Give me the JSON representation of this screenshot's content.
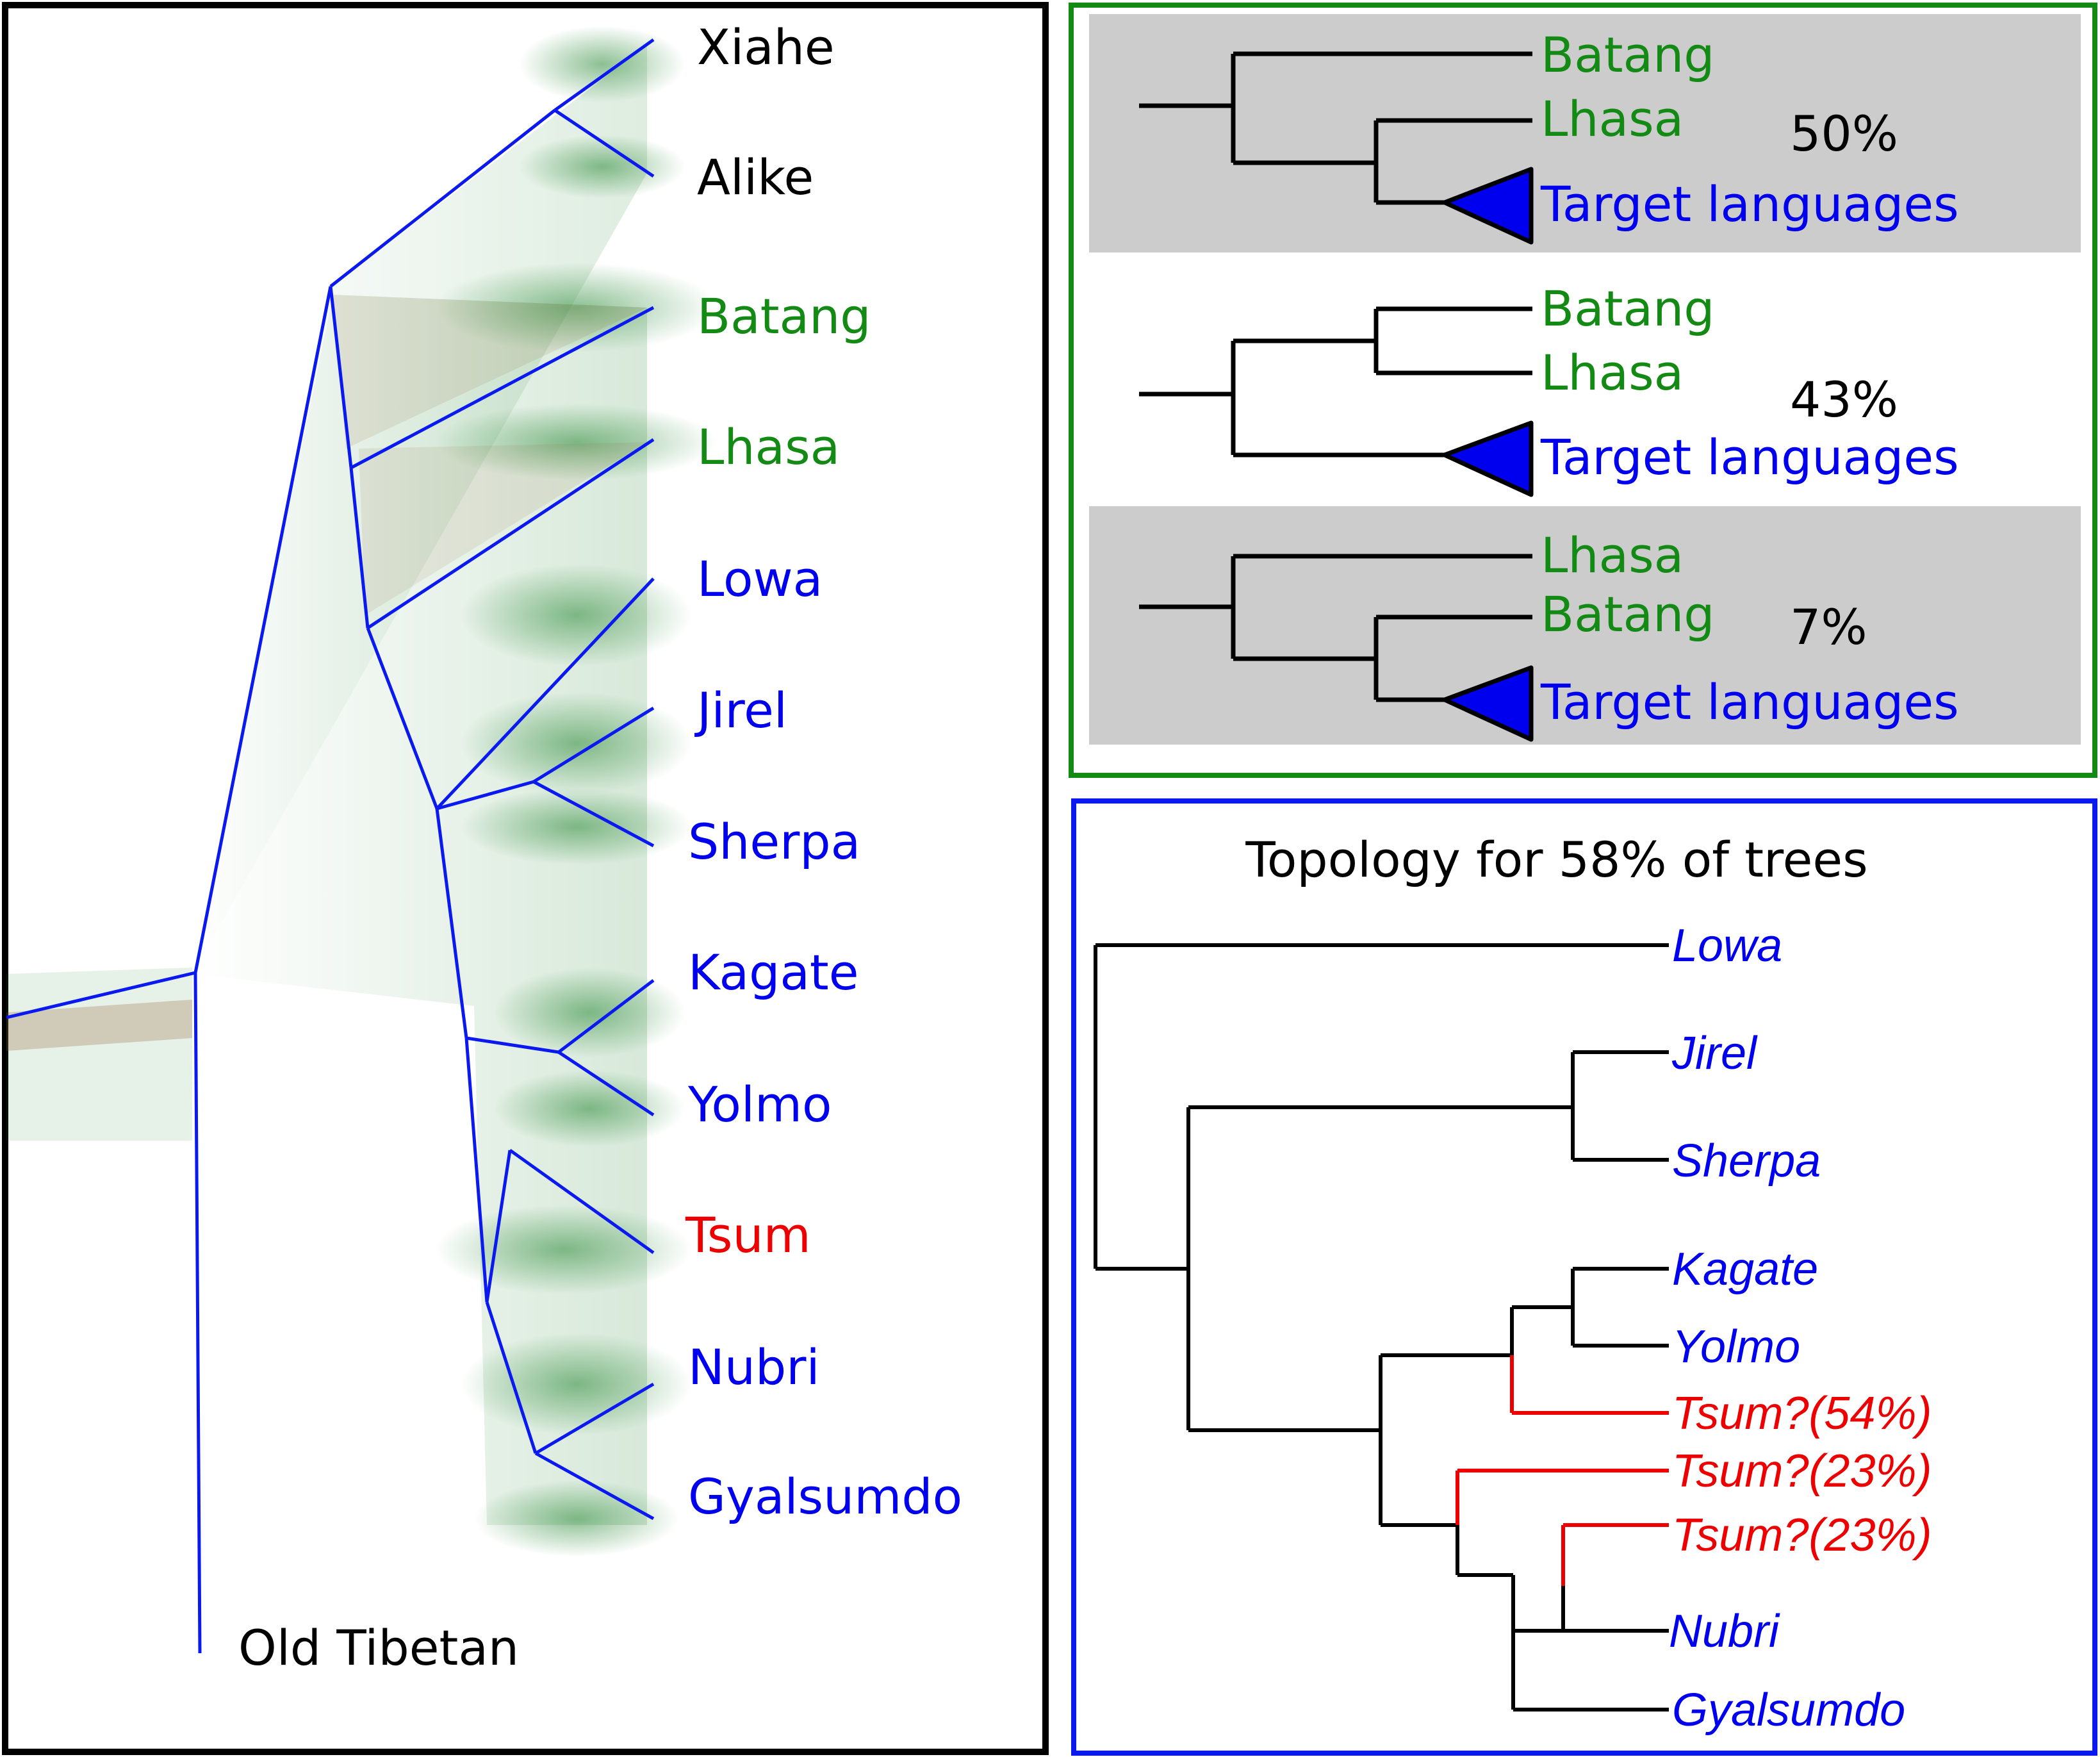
{
  "colors": {
    "black": "#000000",
    "green": "#138a13",
    "blue": "#0000ee",
    "red": "#ee0000",
    "gray_band": "#cccccc",
    "tree_blue": "#0a19f0",
    "cloud_green": "#2e8b3a",
    "cloud_brown": "#8a5a2b",
    "panel_green_border": "#138a13",
    "panel_blue_border": "#0a19f0"
  },
  "left_panel": {
    "root_label": "Old Tibetan",
    "leaves": [
      {
        "label": "Xiahe",
        "color": "black"
      },
      {
        "label": "Alike",
        "color": "black"
      },
      {
        "label": "Batang",
        "color": "green"
      },
      {
        "label": "Lhasa",
        "color": "green"
      },
      {
        "label": "Lowa",
        "color": "blue"
      },
      {
        "label": "Jirel",
        "color": "blue"
      },
      {
        "label": "Sherpa",
        "color": "blue"
      },
      {
        "label": "Kagate",
        "color": "blue"
      },
      {
        "label": "Yolmo",
        "color": "blue"
      },
      {
        "label": "Tsum",
        "color": "red"
      },
      {
        "label": "Nubri",
        "color": "blue"
      },
      {
        "label": "Gyalsumdo",
        "color": "blue"
      }
    ]
  },
  "green_panel": {
    "topologies": [
      {
        "percent": "50%",
        "upper_leaf": "Batang",
        "lower_leaf": "Lhasa",
        "clade": "Target languages",
        "shaded": true
      },
      {
        "percent": "43%",
        "upper_leaf": "Batang",
        "lower_leaf": "Lhasa",
        "clade": "Target languages",
        "shaded": false
      },
      {
        "percent": "7%",
        "upper_leaf": "Lhasa",
        "lower_leaf": "Batang",
        "clade": "Target languages",
        "shaded": true
      }
    ]
  },
  "blue_panel": {
    "title": "Topology for 58% of trees",
    "leaves": [
      {
        "label": "Lowa",
        "color": "blue"
      },
      {
        "label": "Jirel",
        "color": "blue"
      },
      {
        "label": "Sherpa",
        "color": "blue"
      },
      {
        "label": "Kagate",
        "color": "blue"
      },
      {
        "label": "Yolmo",
        "color": "blue"
      },
      {
        "label": "Tsum?(54%)",
        "color": "red"
      },
      {
        "label": "Tsum?(23%)",
        "color": "red"
      },
      {
        "label": "Tsum?(23%)",
        "color": "red"
      },
      {
        "label": "Nubri",
        "color": "blue"
      },
      {
        "label": "Gyalsumdo",
        "color": "blue"
      }
    ]
  }
}
